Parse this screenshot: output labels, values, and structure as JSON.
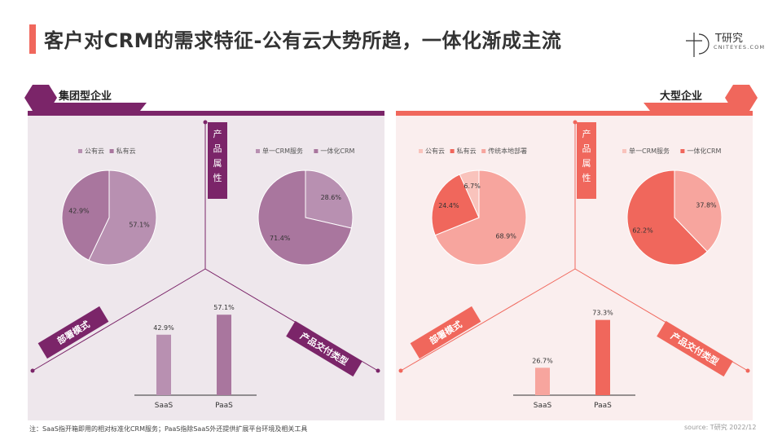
{
  "title": "客户对CRM的需求特征-公有云大势所趋，一体化渐成主流",
  "logo": {
    "name": "T研究",
    "sub": "CNITEYES.COM"
  },
  "footnote": "注：SaaS指开箱即用的相对标准化CRM服务；PaaS指除SaaS外还提供扩展平台环境及相关工具",
  "source": "source:  T研究  2022/12",
  "colors": {
    "left_dark": "#7b2569",
    "left_mid": "#a9769e",
    "left_light": "#b890b1",
    "right_dark": "#f0675c",
    "right_mid": "#f7877c",
    "right_light": "#f7a59e",
    "right_pale": "#f9c3bc"
  },
  "left": {
    "section": "集团型企业",
    "center_label": [
      "产",
      "品",
      "属",
      "性"
    ],
    "left_arm_label": "部署模式",
    "right_arm_label": "产品交付类型"
  },
  "right": {
    "section": "大型企业",
    "center_label": [
      "产",
      "品",
      "属",
      "性"
    ],
    "left_arm_label": "部署模式",
    "right_arm_label": "产品交付类型"
  },
  "chart_data": [
    {
      "type": "pie",
      "group": "集团型企业",
      "legend": [
        "公有云",
        "私有云"
      ],
      "labels": [
        "公有云",
        "私有云"
      ],
      "values": [
        57.1,
        42.9
      ],
      "value_labels": [
        "57.1%",
        "42.9%"
      ]
    },
    {
      "type": "pie",
      "group": "集团型企业",
      "legend": [
        "单一CRM服务",
        "一体化CRM"
      ],
      "labels": [
        "单一CRM服务",
        "一体化CRM"
      ],
      "values": [
        28.6,
        71.4
      ],
      "value_labels": [
        "28.6%",
        "71.4%"
      ]
    },
    {
      "type": "bar",
      "group": "集团型企业",
      "categories": [
        "SaaS",
        "PaaS"
      ],
      "values": [
        42.9,
        57.1
      ],
      "value_labels": [
        "42.9%",
        "57.1%"
      ]
    },
    {
      "type": "pie",
      "group": "大型企业",
      "legend": [
        "公有云",
        "私有云",
        "传统本地部署"
      ],
      "labels": [
        "公有云",
        "私有云",
        "传统本地部署"
      ],
      "values": [
        68.9,
        24.4,
        6.7
      ],
      "value_labels": [
        "68.9%",
        "24.4%",
        "6.7%"
      ]
    },
    {
      "type": "pie",
      "group": "大型企业",
      "legend": [
        "单一CRM服务",
        "一体化CRM"
      ],
      "labels": [
        "单一CRM服务",
        "一体化CRM"
      ],
      "values": [
        37.8,
        62.2
      ],
      "value_labels": [
        "37.8%",
        "62.2%"
      ]
    },
    {
      "type": "bar",
      "group": "大型企业",
      "categories": [
        "SaaS",
        "PaaS"
      ],
      "values": [
        26.7,
        73.3
      ],
      "value_labels": [
        "26.7%",
        "73.3%"
      ]
    }
  ]
}
